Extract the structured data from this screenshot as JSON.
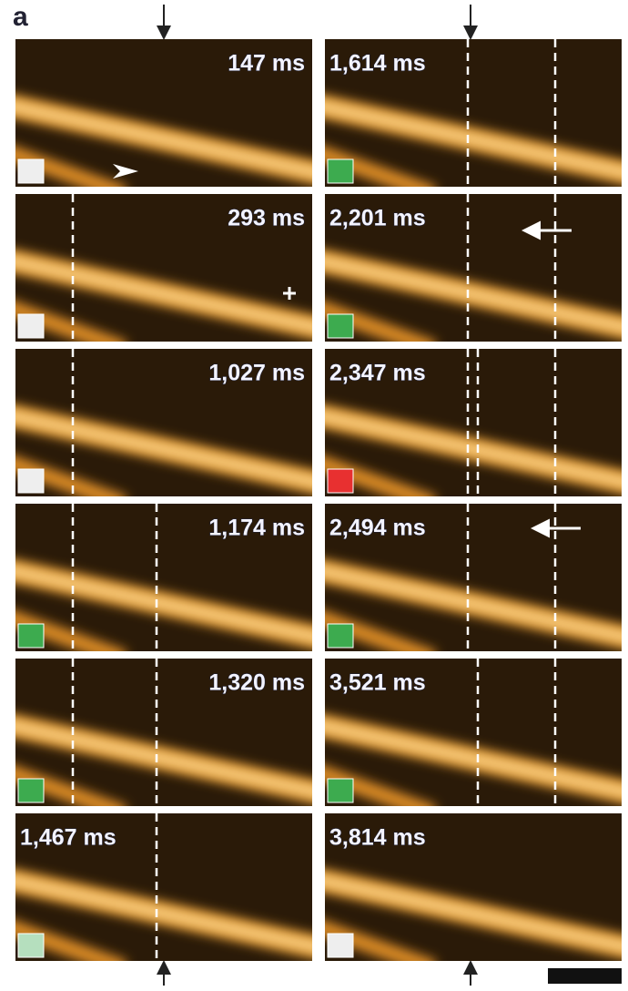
{
  "panel_label": "a",
  "frames": [
    {
      "time": "147 ms"
    },
    {
      "time": "293 ms"
    },
    {
      "time": "1,027 ms"
    },
    {
      "time": "1,174 ms"
    },
    {
      "time": "1,320 ms"
    },
    {
      "time": "1,467 ms"
    },
    {
      "time": "1,614 ms"
    },
    {
      "time": "2,201 ms"
    },
    {
      "time": "2,347 ms"
    },
    {
      "time": "2,494 ms"
    },
    {
      "time": "3,521 ms"
    },
    {
      "time": "3,814 ms"
    }
  ]
}
